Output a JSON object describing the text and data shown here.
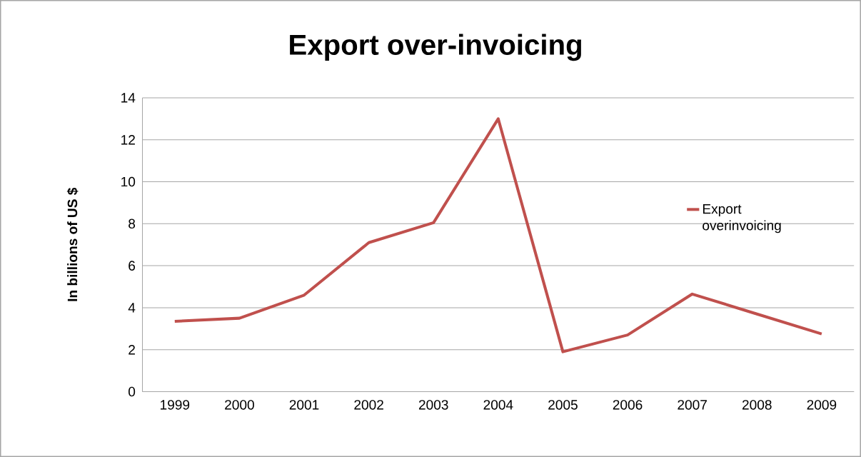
{
  "chart_data": {
    "type": "line",
    "title": "Export over-invoicing",
    "ylabel": "In billions of US $",
    "categories": [
      "1999",
      "2000",
      "2001",
      "2002",
      "2003",
      "2004",
      "2005",
      "2006",
      "2007",
      "2008",
      "2009"
    ],
    "series": [
      {
        "name": "Export overinvoicing",
        "color": "#c0504d",
        "values": [
          3.35,
          3.5,
          4.6,
          7.1,
          8.05,
          13.0,
          1.9,
          2.7,
          4.65,
          3.7,
          2.75
        ]
      }
    ],
    "ylim": [
      0,
      14
    ],
    "yticks": [
      0,
      2,
      4,
      6,
      8,
      10,
      12,
      14
    ],
    "grid": "y",
    "legend": "right",
    "marker": "none",
    "line_style": "solid"
  }
}
